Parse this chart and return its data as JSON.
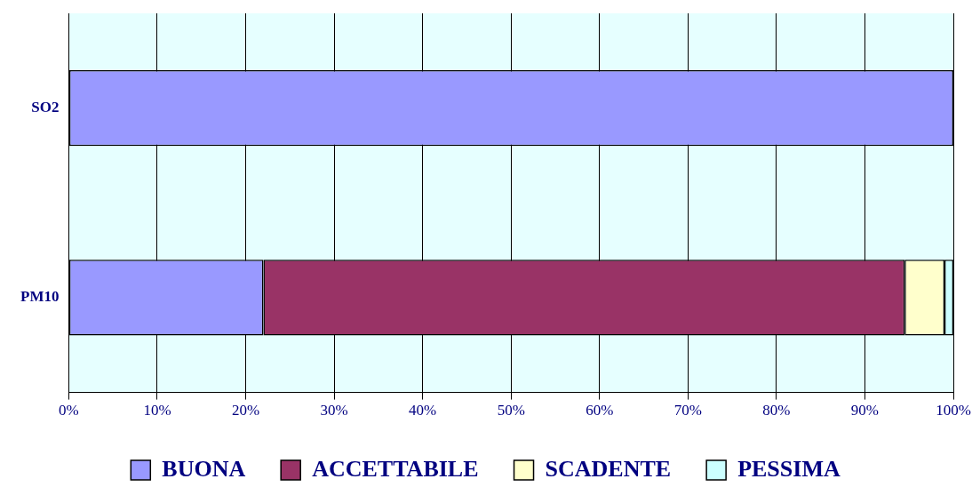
{
  "chart_data": {
    "type": "bar",
    "orientation": "horizontal",
    "stacked": true,
    "categories": [
      "SO2",
      "PM10"
    ],
    "series": [
      {
        "name": "BUONA",
        "color": "#9999ff",
        "values": [
          100,
          22
        ]
      },
      {
        "name": "ACCETTABILE",
        "color": "#993366",
        "values": [
          0,
          72.5
        ]
      },
      {
        "name": "SCADENTE",
        "color": "#ffffcc",
        "values": [
          0,
          4.5
        ]
      },
      {
        "name": "PESSIMA",
        "color": "#ccffff",
        "values": [
          0,
          1
        ]
      }
    ],
    "xlim": [
      0,
      100
    ],
    "xticks": [
      {
        "value": 0,
        "label": "0%"
      },
      {
        "value": 10,
        "label": "10%"
      },
      {
        "value": 20,
        "label": "20%"
      },
      {
        "value": 30,
        "label": "30%"
      },
      {
        "value": 40,
        "label": "40%"
      },
      {
        "value": 50,
        "label": "50%"
      },
      {
        "value": 60,
        "label": "60%"
      },
      {
        "value": 70,
        "label": "70%"
      },
      {
        "value": 80,
        "label": "80%"
      },
      {
        "value": 90,
        "label": "90%"
      },
      {
        "value": 100,
        "label": "100%"
      }
    ],
    "grid": "x",
    "legend": "bottom"
  }
}
